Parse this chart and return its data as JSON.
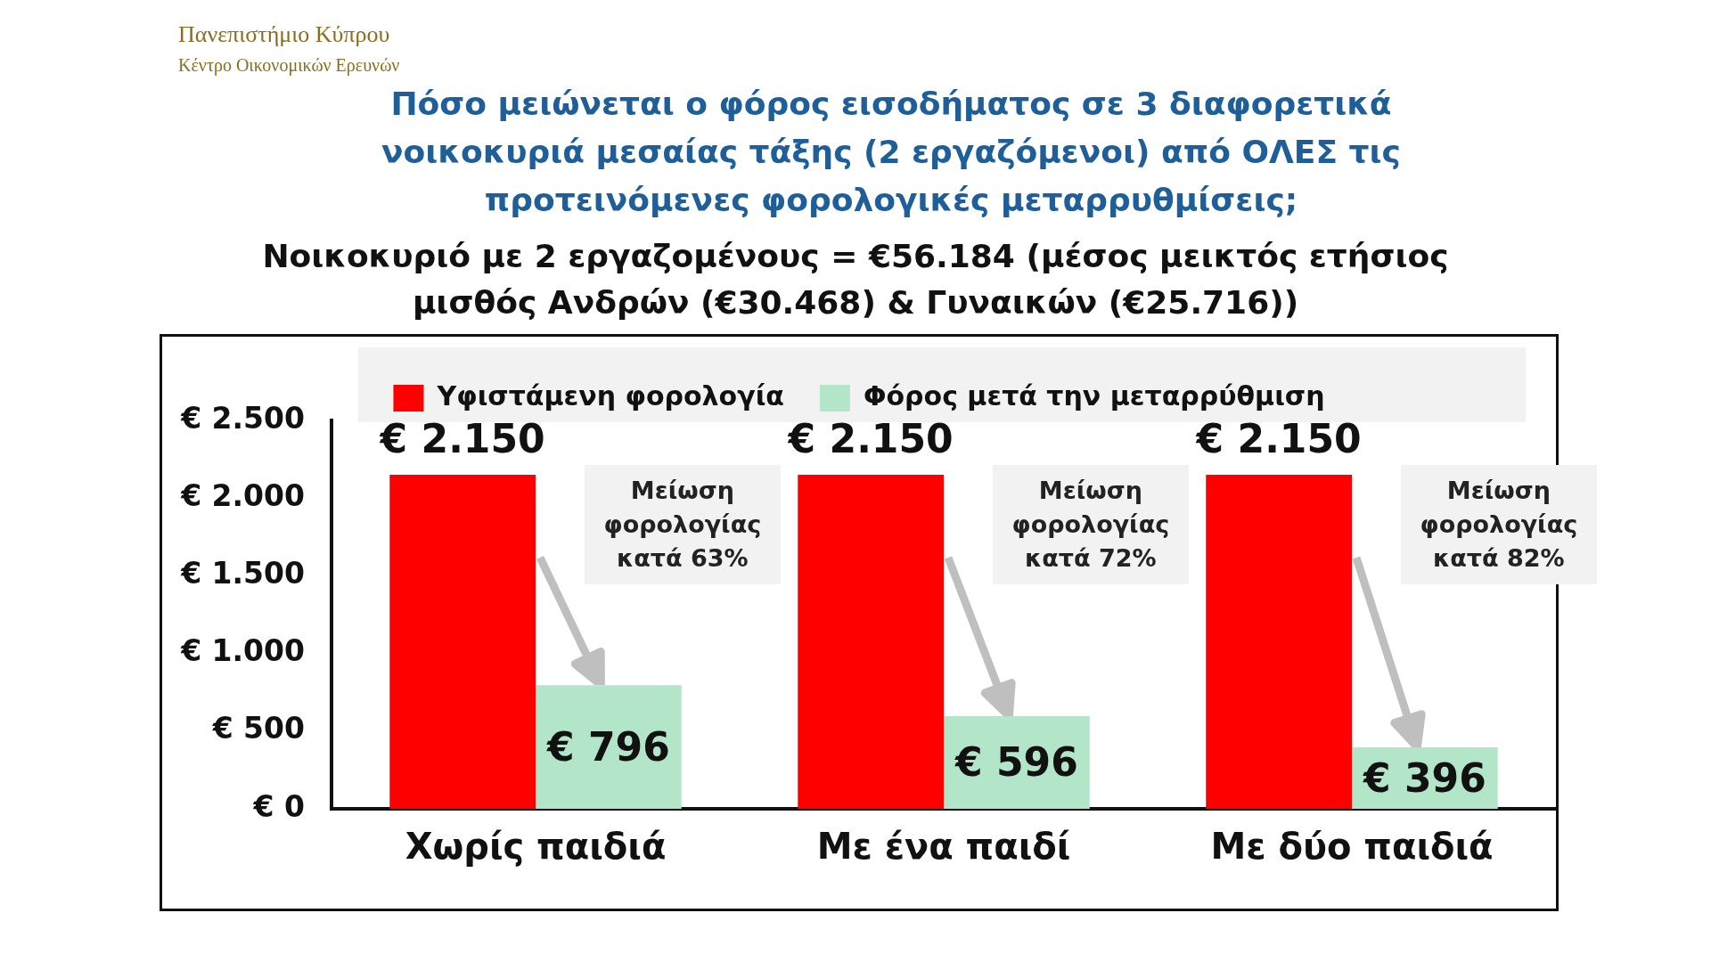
{
  "chart_data": {
    "type": "bar",
    "title": "Πόσο μειώνεται ο φόρος εισοδήματος σε 3 διαφορετικά νοικοκυριά μεσαίας τάξης (2 εργαζόμενοι) από ΟΛΕΣ τις προτεινόμενες φορολογικές μεταρρυθμίσεις;",
    "subtitle": "Νοικοκυριό με 2 εργαζομένους = €56.184 (μέσος μεικτός ετήσιος μισθός Ανδρών (€30.468) & Γυναικών (€25.716))",
    "categories": [
      "Χωρίς παιδιά",
      "Με ένα παιδί",
      "Με δύο παιδιά"
    ],
    "series": [
      {
        "name": "Υφιστάμενη φορολογία",
        "color": "#ff0000",
        "values": [
          2150,
          2150,
          2150
        ],
        "value_labels": [
          "€ 2.150",
          "€ 2.150",
          "€ 2.150"
        ]
      },
      {
        "name": "Φόρος μετά την μεταρρύθμιση",
        "color": "#b3e6c9",
        "values": [
          796,
          596,
          396
        ],
        "value_labels": [
          "€ 796",
          "€ 596",
          "€ 396"
        ]
      }
    ],
    "ylim": [
      0,
      2500
    ],
    "yticks": [
      {
        "value": 0,
        "label": "€ 0"
      },
      {
        "value": 500,
        "label": "€ 500"
      },
      {
        "value": 1000,
        "label": "€ 1.000"
      },
      {
        "value": 1500,
        "label": "€ 1.500"
      },
      {
        "value": 2000,
        "label": "€ 2.000"
      },
      {
        "value": 2500,
        "label": "€ 2.500"
      }
    ],
    "grid": false,
    "legend": "top",
    "annotations": [
      "Πανεπιστήμιο Κύπρου",
      "Κέντρο Οικονομικών Ερευνών",
      "Μείωση φορολογίας κατά 63%",
      "Μείωση φορολογίας κατά 72%",
      "Μείωση φορολογίας κατά 82%"
    ]
  }
}
